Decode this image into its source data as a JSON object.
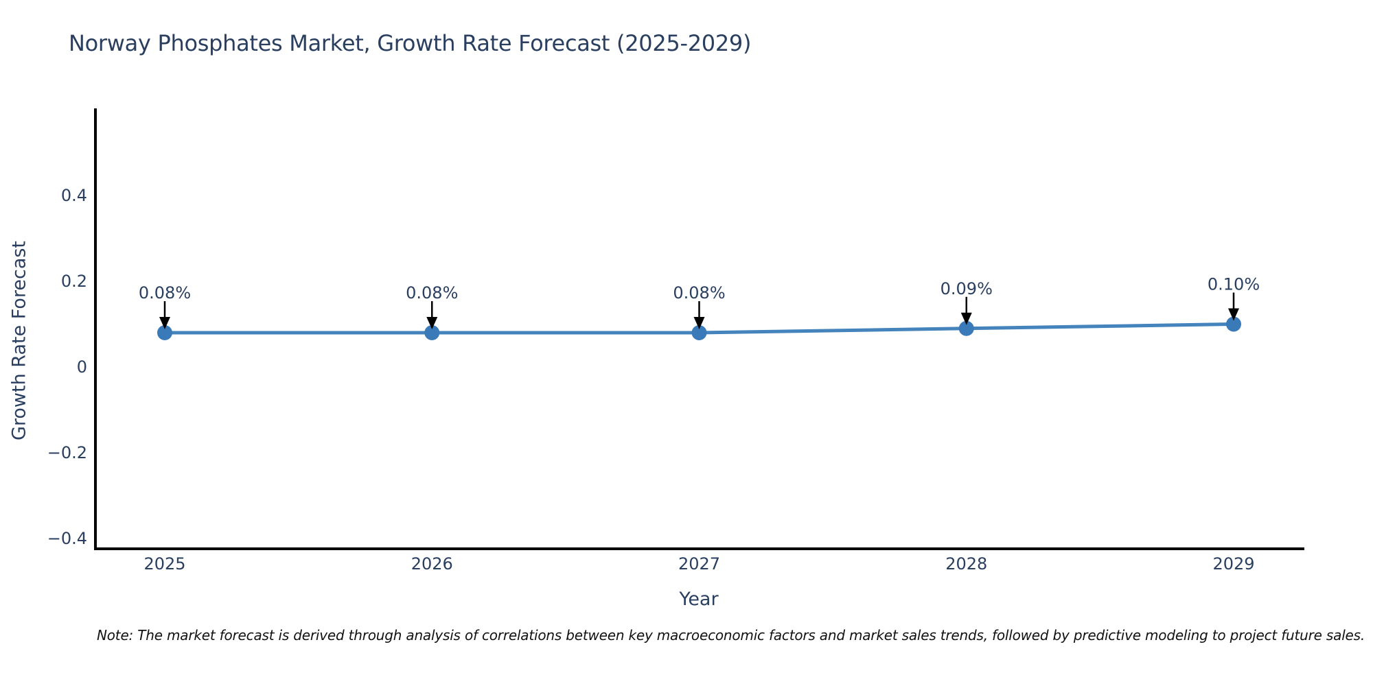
{
  "header": {
    "title": "Norway Phosphates Market, Growth Rate Forecast (2025-2029)",
    "title_color": "#2a3f5f"
  },
  "chart_data": {
    "type": "line",
    "title": "Norway Phosphates Market, Growth Rate Forecast (2025-2029)",
    "xlabel": "Year",
    "ylabel": "Growth Rate Forecast",
    "x": [
      2025,
      2026,
      2027,
      2028,
      2029
    ],
    "x_tick_labels": [
      "2025",
      "2026",
      "2027",
      "2028",
      "2029"
    ],
    "series": [
      {
        "name": "Growth Rate Forecast",
        "values": [
          0.08,
          0.08,
          0.08,
          0.09,
          0.1
        ],
        "point_labels": [
          "0.08%",
          "0.08%",
          "0.08%",
          "0.09%",
          "0.10%"
        ]
      }
    ],
    "y_ticks": [
      0.4,
      0.2,
      0,
      -0.2,
      -0.4
    ],
    "y_tick_labels": [
      "0.4",
      "0.2",
      "0",
      "−0.2",
      "−0.4"
    ],
    "ylim": [
      -0.424,
      0.6
    ],
    "grid": false,
    "legend": "none",
    "annotations_have_arrows": true,
    "colors": {
      "line": "#4483bb",
      "marker": "#3a7ab8",
      "arrow": "#000000",
      "axis_line": "#000000",
      "tick_label": "#2a3f5f",
      "annotation_text": "#2a3f5f"
    }
  },
  "footnote": {
    "text": "Note: The market forecast is derived through analysis of correlations between key macroeconomic factors and market sales trends, followed by predictive modeling to project future sales."
  }
}
